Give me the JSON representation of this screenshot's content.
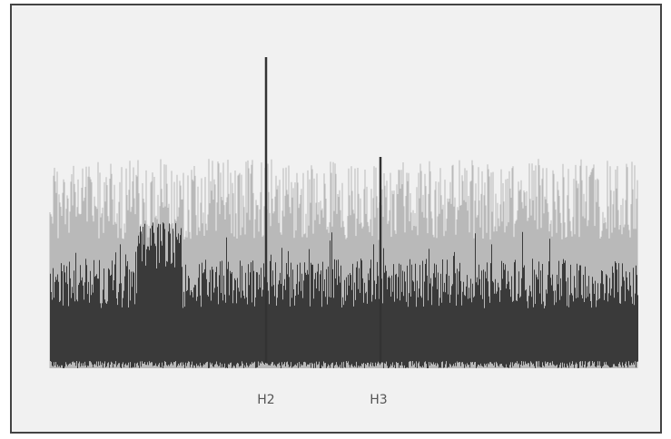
{
  "labels": [
    "H2",
    "H3"
  ]
}
